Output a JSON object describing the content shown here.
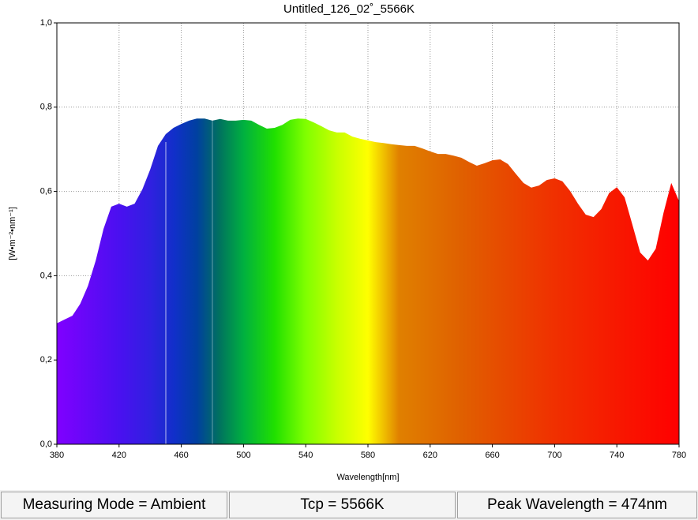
{
  "chart_data": {
    "type": "area",
    "title": "Untitled_126_02˚_5566K",
    "x_label": "Wavelength[nm]",
    "y_label": "[W•m⁻²•nm⁻¹]",
    "xlim": [
      380,
      780
    ],
    "xticks": [
      380,
      420,
      460,
      500,
      540,
      580,
      620,
      660,
      700,
      740,
      780
    ],
    "ylim": [
      0,
      1
    ],
    "yticks": [
      {
        "value": 0,
        "label": "0,0"
      },
      {
        "value": 0.2,
        "label": "0,2"
      },
      {
        "value": 0.4,
        "label": "0,4"
      },
      {
        "value": 0.6,
        "label": "0,6"
      },
      {
        "value": 0.8,
        "label": "0,8"
      },
      {
        "value": 1,
        "label": "1,0"
      }
    ],
    "grid": true,
    "x": [
      380,
      385,
      390,
      395,
      400,
      405,
      410,
      415,
      420,
      425,
      430,
      435,
      440,
      445,
      450,
      455,
      460,
      465,
      470,
      475,
      480,
      485,
      490,
      495,
      500,
      505,
      510,
      515,
      520,
      525,
      530,
      535,
      540,
      545,
      550,
      555,
      560,
      565,
      570,
      575,
      580,
      585,
      590,
      595,
      600,
      605,
      610,
      615,
      620,
      625,
      630,
      635,
      640,
      645,
      650,
      655,
      660,
      665,
      670,
      675,
      680,
      685,
      690,
      695,
      700,
      705,
      710,
      715,
      720,
      725,
      730,
      735,
      740,
      745,
      750,
      755,
      760,
      765,
      770,
      775,
      780
    ],
    "values": [
      0.287,
      0.296,
      0.305,
      0.333,
      0.376,
      0.436,
      0.511,
      0.564,
      0.571,
      0.564,
      0.571,
      0.605,
      0.652,
      0.708,
      0.736,
      0.751,
      0.76,
      0.768,
      0.773,
      0.773,
      0.768,
      0.772,
      0.768,
      0.768,
      0.77,
      0.768,
      0.758,
      0.749,
      0.751,
      0.758,
      0.77,
      0.773,
      0.772,
      0.764,
      0.755,
      0.745,
      0.74,
      0.74,
      0.73,
      0.725,
      0.721,
      0.717,
      0.715,
      0.712,
      0.71,
      0.708,
      0.708,
      0.702,
      0.695,
      0.689,
      0.689,
      0.685,
      0.68,
      0.67,
      0.661,
      0.667,
      0.674,
      0.676,
      0.665,
      0.642,
      0.62,
      0.609,
      0.614,
      0.627,
      0.631,
      0.624,
      0.601,
      0.571,
      0.545,
      0.539,
      0.558,
      0.596,
      0.61,
      0.586,
      0.521,
      0.455,
      0.436,
      0.464,
      0.549,
      0.62,
      0.577
    ]
  },
  "status_bar": [
    "Measuring Mode = Ambient",
    "Tcp = 5566K",
    "Peak Wavelength = 474nm"
  ]
}
